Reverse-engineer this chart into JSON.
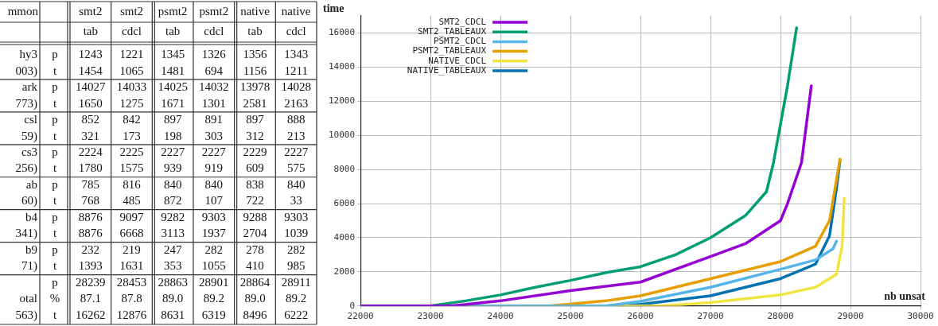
{
  "chart_data": [
    {
      "type": "heatmap",
      "annotations": [
        "mmon"
      ],
      "data_labels": true,
      "categories": [
        "smt2 tab",
        "smt2 cdcl",
        "psmt2 tab",
        "psmt2 cdcl",
        "native tab",
        "native cdcl"
      ],
      "y_categories": [
        "p",
        "t",
        "p",
        "t",
        "p",
        "t",
        "p",
        "t",
        "p",
        "t",
        "p",
        "t",
        "p",
        "t",
        "p",
        "%",
        "t"
      ],
      "y2_categories": [
        "hy3",
        "003)",
        "ark",
        "773)",
        "csl",
        "59)",
        "cs3",
        "256)",
        "ab",
        "60)",
        "b4",
        "341)",
        "b9",
        "71)",
        null,
        "otal",
        "563)"
      ],
      "cells": [
        [
          1243,
          1221,
          1345,
          1326,
          1356,
          1343
        ],
        [
          1454,
          1065,
          1481,
          694,
          1156,
          1211
        ],
        [
          14027,
          14033,
          14025,
          14032,
          13978,
          14028
        ],
        [
          1650,
          1275,
          1671,
          1301,
          2581,
          2163
        ],
        [
          852,
          842,
          897,
          891,
          897,
          888
        ],
        [
          321,
          173,
          198,
          303,
          312,
          213
        ],
        [
          2224,
          2225,
          2227,
          2227,
          2229,
          2227
        ],
        [
          1780,
          1575,
          939,
          919,
          609,
          575
        ],
        [
          785,
          816,
          840,
          840,
          838,
          840
        ],
        [
          768,
          485,
          872,
          107,
          722,
          33
        ],
        [
          8876,
          9097,
          9282,
          9303,
          9288,
          9303
        ],
        [
          8876,
          6668,
          3113,
          1937,
          2704,
          1039
        ],
        [
          232,
          219,
          247,
          282,
          278,
          282
        ],
        [
          1393,
          1631,
          353,
          1055,
          410,
          985
        ],
        [
          28239,
          28453,
          28863,
          28901,
          28864,
          28911
        ],
        [
          87.1,
          87.8,
          89.0,
          89.2,
          89.0,
          89.2
        ],
        [
          16262,
          12876,
          8631,
          6319,
          8496,
          6222
        ]
      ],
      "cell_labels": [
        [
          "1243",
          "1221",
          "1345",
          "1326",
          "1356",
          "1343"
        ],
        [
          "1454",
          "1065",
          "1481",
          "694",
          "1156",
          "1211"
        ],
        [
          "14027",
          "14033",
          "14025",
          "14032",
          "13978",
          "14028"
        ],
        [
          "1650",
          "1275",
          "1671",
          "1301",
          "2581",
          "2163"
        ],
        [
          "852",
          "842",
          "897",
          "891",
          "897",
          "888"
        ],
        [
          "321",
          "173",
          "198",
          "303",
          "312",
          "213"
        ],
        [
          "2224",
          "2225",
          "2227",
          "2227",
          "2229",
          "2227"
        ],
        [
          "1780",
          "1575",
          "939",
          "919",
          "609",
          "575"
        ],
        [
          "785",
          "816",
          "840",
          "840",
          "838",
          "840"
        ],
        [
          "768",
          "485",
          "872",
          "107",
          "722",
          "33"
        ],
        [
          "8876",
          "9097",
          "9282",
          "9303",
          "9288",
          "9303"
        ],
        [
          "8876",
          "6668",
          "3113",
          "1937",
          "2704",
          "1039"
        ],
        [
          "232",
          "219",
          "247",
          "282",
          "278",
          "282"
        ],
        [
          "1393",
          "1631",
          "353",
          "1055",
          "410",
          "985"
        ],
        [
          "28239",
          "28453",
          "28863",
          "28901",
          "28864",
          "28911"
        ],
        [
          "87.1",
          "87.8",
          "89.0",
          "89.2",
          "89.0",
          "89.2"
        ],
        [
          "16262",
          "12876",
          "8631",
          "6319",
          "8496",
          "6222"
        ]
      ]
    },
    {
      "type": "line",
      "ylabel": "time",
      "xlabel": "nb unsat",
      "xlim": [
        22000,
        30000
      ],
      "xticks": [
        22000,
        23000,
        24000,
        25000,
        26000,
        27000,
        28000,
        29000,
        30000
      ],
      "ylim": [
        0,
        17000
      ],
      "yticks": [
        0,
        2000,
        4000,
        6000,
        8000,
        10000,
        12000,
        14000,
        16000
      ],
      "grid": true,
      "legend": "top left",
      "series": [
        {
          "name": "SMT2_CDCL",
          "color": "#9400d3",
          "x": [
            22000,
            23300,
            24000,
            25000,
            26000,
            27000,
            27500,
            28000,
            28100,
            28300,
            28440
          ],
          "values": [
            0,
            0,
            300,
            900,
            1400,
            2900,
            3650,
            5000,
            6000,
            8400,
            12900
          ]
        },
        {
          "name": "SMT2_TABLEAUX",
          "color": "#009e73",
          "x": [
            22000,
            23000,
            23500,
            24000,
            24500,
            25000,
            25500,
            26000,
            26500,
            27000,
            27500,
            27800,
            27900,
            28100,
            28230
          ],
          "values": [
            0,
            0,
            300,
            650,
            1100,
            1500,
            1950,
            2300,
            3000,
            4000,
            5300,
            6700,
            8400,
            12900,
            16300
          ]
        },
        {
          "name": "PSMT2_CDCL",
          "color": "#56b4e9",
          "x": [
            22000,
            25500,
            26000,
            27000,
            28000,
            28500,
            28750,
            28800
          ],
          "values": [
            0,
            0,
            270,
            1100,
            2150,
            2700,
            3350,
            3800
          ]
        },
        {
          "name": "PSMT2_TABLEAUX",
          "color": "#e69f00",
          "x": [
            22000,
            24700,
            25500,
            26000,
            27000,
            28000,
            28500,
            28700,
            28850
          ],
          "values": [
            0,
            0,
            300,
            600,
            1600,
            2600,
            3500,
            5000,
            8600
          ]
        },
        {
          "name": "NATIVE_CDCL",
          "color": "#f0e442",
          "x": [
            22000,
            26300,
            27000,
            28000,
            28500,
            28800,
            28880,
            28910
          ],
          "values": [
            0,
            0,
            200,
            650,
            1100,
            1850,
            3500,
            6300
          ]
        },
        {
          "name": "NATIVE_TABLEAUX",
          "color": "#0072b2",
          "x": [
            22000,
            25500,
            26000,
            27000,
            28000,
            28500,
            28700,
            28800,
            28850
          ],
          "values": [
            0,
            0,
            100,
            600,
            1600,
            2450,
            4100,
            6900,
            8500
          ]
        }
      ]
    }
  ]
}
